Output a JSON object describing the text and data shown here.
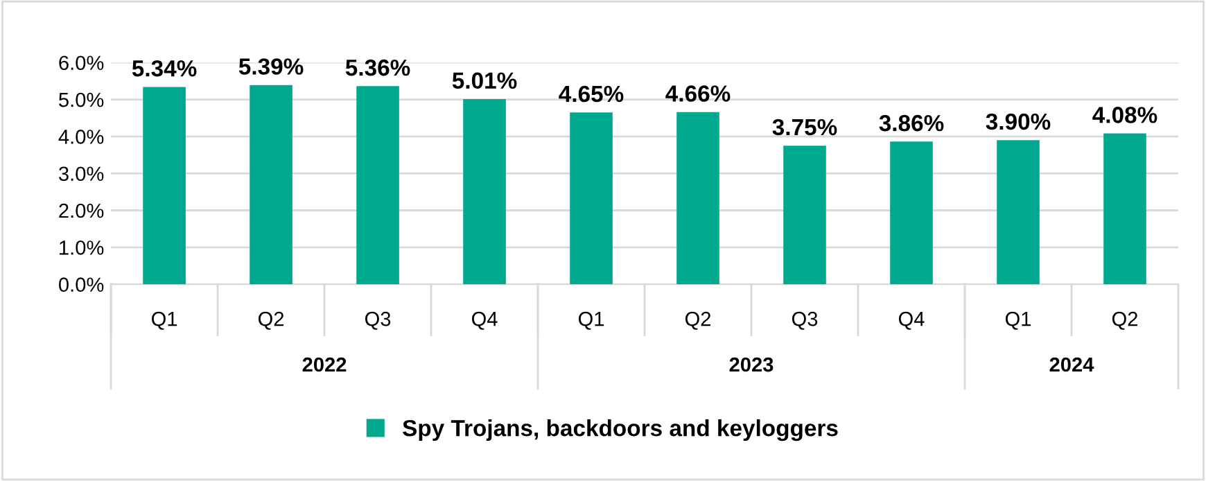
{
  "chart_data": {
    "type": "bar",
    "categories": [
      "Q1",
      "Q2",
      "Q3",
      "Q4",
      "Q1",
      "Q2",
      "Q3",
      "Q4",
      "Q1",
      "Q2"
    ],
    "series": [
      {
        "name": "Spy Trojans, backdoors and keyloggers",
        "color": "#00a88e",
        "values": [
          5.34,
          5.39,
          5.36,
          5.01,
          4.65,
          4.66,
          3.75,
          3.86,
          3.9,
          4.08
        ]
      }
    ],
    "value_labels": [
      "5.34%",
      "5.39%",
      "5.36%",
      "5.01%",
      "4.65%",
      "4.66%",
      "3.75%",
      "3.86%",
      "3.90%",
      "4.08%"
    ],
    "ylim": [
      0,
      6
    ],
    "yticks": [
      {
        "value": 0,
        "label": "0.0%"
      },
      {
        "value": 1,
        "label": "1.0%"
      },
      {
        "value": 2,
        "label": "2.0%"
      },
      {
        "value": 3,
        "label": "3.0%"
      },
      {
        "value": 4,
        "label": "4.0%"
      },
      {
        "value": 5,
        "label": "5.0%"
      },
      {
        "value": 6,
        "label": "6.0%"
      }
    ],
    "annotations": [
      "2022",
      "2023",
      "2024"
    ],
    "grid": "y",
    "legend": "bottom"
  }
}
